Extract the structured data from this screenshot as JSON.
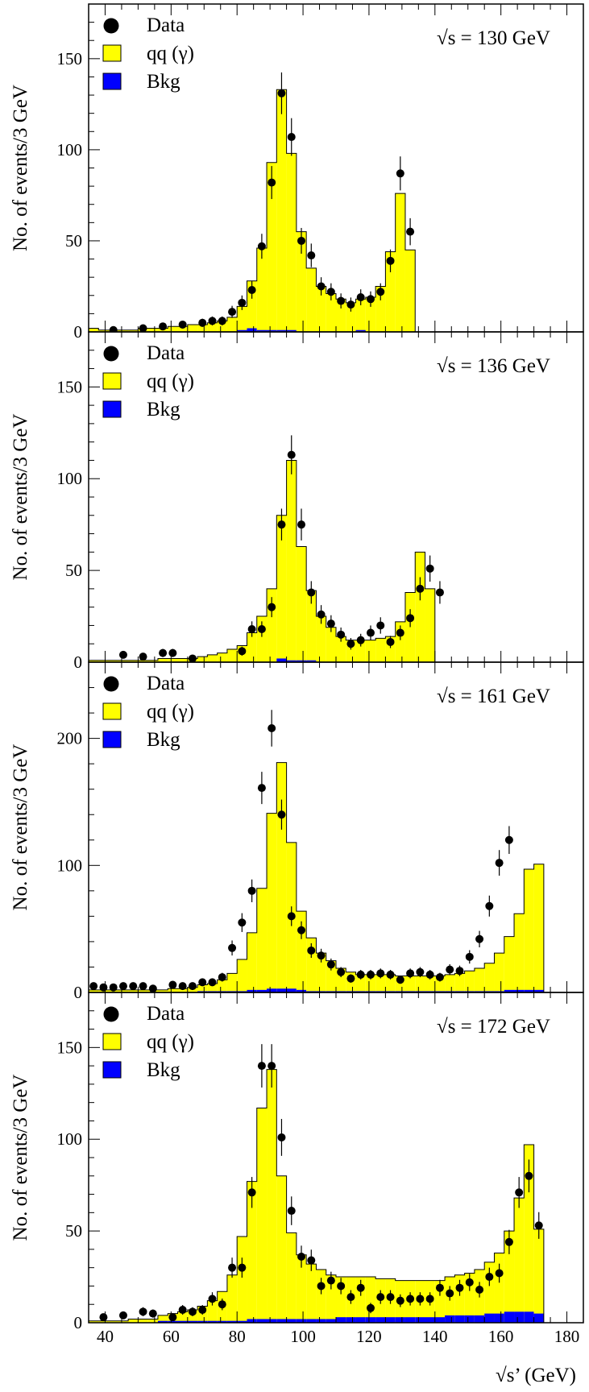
{
  "figure": {
    "ylabel": "No. of events/3 GeV",
    "xlabel": "√s’ (GeV)",
    "legend": {
      "data": "Data",
      "signal": "qq (γ)",
      "bkg": "Bkg"
    },
    "colors": {
      "signal_fill": "#ffff00",
      "bkg_fill": "#0000ff",
      "frame": "#000000",
      "points": "#000000"
    }
  },
  "chart_data": [
    {
      "type": "bar",
      "panel": 1,
      "label": "√s = 130 GeV",
      "xlim": [
        35,
        185
      ],
      "ylim": [
        0,
        180
      ],
      "xticks": [
        40,
        60,
        80,
        100,
        120,
        140,
        160,
        180
      ],
      "yticks": [
        0,
        50,
        100,
        150
      ],
      "bin_width": 3,
      "bin_start": 35,
      "signal": [
        2,
        1,
        1,
        1,
        1,
        2,
        2,
        2,
        3,
        3,
        4,
        4,
        5,
        6,
        8,
        13,
        26,
        45,
        92,
        132,
        97,
        55,
        35,
        25,
        21,
        18,
        16,
        17,
        19,
        25,
        44,
        76,
        45
      ],
      "bkg": [
        0,
        0,
        0,
        0,
        0,
        0,
        0,
        0,
        0,
        0,
        0,
        0,
        0,
        0,
        0,
        1,
        2,
        1,
        1,
        1,
        1,
        0,
        0,
        0,
        0,
        0,
        0,
        1,
        0,
        0,
        0,
        0,
        0
      ],
      "data": [
        [
          42.5,
          1
        ],
        [
          51.5,
          2
        ],
        [
          57.5,
          3
        ],
        [
          63.5,
          4
        ],
        [
          69.5,
          5
        ],
        [
          72.5,
          6
        ],
        [
          75.5,
          6
        ],
        [
          78.5,
          11
        ],
        [
          81.5,
          16
        ],
        [
          84.5,
          23
        ],
        [
          87.5,
          47
        ],
        [
          90.5,
          82
        ],
        [
          93.5,
          131
        ],
        [
          96.5,
          107
        ],
        [
          99.5,
          50
        ],
        [
          102.5,
          42
        ],
        [
          105.5,
          25
        ],
        [
          108.5,
          22
        ],
        [
          111.5,
          17
        ],
        [
          114.5,
          15
        ],
        [
          117.5,
          19
        ],
        [
          120.5,
          18
        ],
        [
          123.5,
          22
        ],
        [
          126.5,
          39
        ],
        [
          129.5,
          87
        ],
        [
          132.5,
          55
        ]
      ]
    },
    {
      "type": "bar",
      "panel": 2,
      "label": "√s = 136 GeV",
      "xlim": [
        35,
        185
      ],
      "ylim": [
        0,
        180
      ],
      "xticks": [
        40,
        60,
        80,
        100,
        120,
        140,
        160,
        180
      ],
      "yticks": [
        0,
        50,
        100,
        150
      ],
      "bin_width": 3,
      "bin_start": 35,
      "signal": [
        1,
        1,
        1,
        1,
        1,
        1,
        1,
        2,
        2,
        2,
        2,
        3,
        4,
        5,
        7,
        9,
        16,
        25,
        40,
        78,
        109,
        62,
        38,
        25,
        19,
        14,
        12,
        12,
        12,
        13,
        14,
        22,
        38,
        60,
        40,
        0
      ],
      "bkg": [
        0,
        0,
        0,
        0,
        0,
        0,
        0,
        0,
        0,
        0,
        0,
        0,
        0,
        0,
        0,
        0,
        0,
        0,
        0,
        2,
        1,
        1,
        1,
        0,
        0,
        0,
        0,
        0,
        0,
        0,
        0,
        0,
        0,
        0,
        0,
        0
      ],
      "data": [
        [
          45.5,
          4
        ],
        [
          51.5,
          3
        ],
        [
          57.5,
          5
        ],
        [
          60.5,
          5
        ],
        [
          66.5,
          2
        ],
        [
          81.5,
          6
        ],
        [
          84.5,
          18
        ],
        [
          87.5,
          18
        ],
        [
          90.5,
          30
        ],
        [
          93.5,
          75
        ],
        [
          96.5,
          113
        ],
        [
          99.5,
          75
        ],
        [
          102.5,
          38
        ],
        [
          105.5,
          26
        ],
        [
          108.5,
          21
        ],
        [
          111.5,
          15
        ],
        [
          114.5,
          10
        ],
        [
          117.5,
          12
        ],
        [
          120.5,
          16
        ],
        [
          123.5,
          20
        ],
        [
          126.5,
          11
        ],
        [
          129.5,
          16
        ],
        [
          132.5,
          24
        ],
        [
          135.5,
          40
        ],
        [
          138.5,
          51
        ],
        [
          141.5,
          38
        ]
      ]
    },
    {
      "type": "bar",
      "panel": 3,
      "label": "√s = 161 GeV",
      "xlim": [
        35,
        185
      ],
      "ylim": [
        0,
        260
      ],
      "xticks": [
        40,
        60,
        80,
        100,
        120,
        140,
        160,
        180
      ],
      "yticks": [
        0,
        100,
        200
      ],
      "bin_width": 3,
      "bin_start": 35,
      "signal": [
        2,
        2,
        2,
        2,
        2,
        2,
        2,
        2,
        3,
        3,
        4,
        5,
        6,
        9,
        14,
        25,
        45,
        80,
        138,
        178,
        115,
        62,
        42,
        30,
        24,
        18,
        15,
        13,
        13,
        13,
        13,
        12,
        12,
        12,
        12,
        12,
        13,
        14,
        16,
        18,
        22,
        30,
        42,
        60,
        95,
        99,
        0
      ],
      "bkg": [
        0,
        0,
        0,
        0,
        0,
        0,
        0,
        0,
        0,
        0,
        0,
        1,
        1,
        1,
        1,
        1,
        2,
        2,
        3,
        3,
        3,
        2,
        1,
        1,
        1,
        1,
        1,
        1,
        1,
        1,
        1,
        1,
        1,
        1,
        1,
        1,
        1,
        1,
        1,
        1,
        1,
        1,
        2,
        2,
        2,
        2,
        0
      ],
      "data": [
        [
          36.5,
          5
        ],
        [
          39.5,
          4
        ],
        [
          42.5,
          4
        ],
        [
          45.5,
          5
        ],
        [
          48.5,
          5
        ],
        [
          51.5,
          5
        ],
        [
          54.5,
          3
        ],
        [
          60.5,
          6
        ],
        [
          63.5,
          5
        ],
        [
          66.5,
          5
        ],
        [
          69.5,
          8
        ],
        [
          72.5,
          8
        ],
        [
          75.5,
          12
        ],
        [
          78.5,
          35
        ],
        [
          81.5,
          55
        ],
        [
          84.5,
          80
        ],
        [
          87.5,
          161
        ],
        [
          90.5,
          208
        ],
        [
          93.5,
          140
        ],
        [
          96.5,
          60
        ],
        [
          99.5,
          49
        ],
        [
          102.5,
          33
        ],
        [
          105.5,
          29
        ],
        [
          108.5,
          22
        ],
        [
          111.5,
          16
        ],
        [
          114.5,
          11
        ],
        [
          117.5,
          14
        ],
        [
          120.5,
          14
        ],
        [
          123.5,
          15
        ],
        [
          126.5,
          14
        ],
        [
          129.5,
          10
        ],
        [
          132.5,
          15
        ],
        [
          135.5,
          16
        ],
        [
          138.5,
          14
        ],
        [
          141.5,
          12
        ],
        [
          144.5,
          18
        ],
        [
          147.5,
          17
        ],
        [
          150.5,
          28
        ],
        [
          153.5,
          42
        ],
        [
          156.5,
          68
        ],
        [
          159.5,
          102
        ],
        [
          162.5,
          120
        ]
      ]
    },
    {
      "type": "bar",
      "panel": 4,
      "label": "√s = 172 GeV",
      "xlim": [
        35,
        185
      ],
      "ylim": [
        0,
        180
      ],
      "xticks": [
        40,
        60,
        80,
        100,
        120,
        140,
        160,
        180
      ],
      "yticks": [
        0,
        50,
        100,
        150
      ],
      "bin_width": 3,
      "bin_start": 35,
      "signal": [
        1,
        1,
        1,
        1,
        2,
        2,
        2,
        3,
        4,
        5,
        6,
        8,
        11,
        16,
        25,
        46,
        75,
        115,
        136,
        78,
        47,
        35,
        30,
        27,
        24,
        22,
        22,
        22,
        22,
        21,
        21,
        20,
        20,
        20,
        20,
        20,
        21,
        22,
        23,
        25,
        28,
        33,
        44,
        62,
        91,
        46
      ],
      "bkg": [
        0,
        0,
        0,
        0,
        0,
        0,
        0,
        1,
        1,
        1,
        1,
        1,
        1,
        1,
        1,
        1,
        2,
        2,
        2,
        2,
        2,
        2,
        2,
        2,
        2,
        3,
        3,
        3,
        3,
        3,
        3,
        3,
        3,
        3,
        3,
        3,
        4,
        4,
        4,
        4,
        5,
        5,
        6,
        6,
        6,
        5
      ],
      "data": [
        [
          39.5,
          3
        ],
        [
          45.5,
          4
        ],
        [
          51.5,
          6
        ],
        [
          54.5,
          5
        ],
        [
          60.5,
          3
        ],
        [
          63.5,
          7
        ],
        [
          66.5,
          6
        ],
        [
          69.5,
          7
        ],
        [
          72.5,
          13
        ],
        [
          75.5,
          10
        ],
        [
          78.5,
          30
        ],
        [
          81.5,
          30
        ],
        [
          84.5,
          71
        ],
        [
          87.5,
          140
        ],
        [
          90.5,
          140
        ],
        [
          93.5,
          101
        ],
        [
          96.5,
          61
        ],
        [
          99.5,
          36
        ],
        [
          102.5,
          34
        ],
        [
          105.5,
          20
        ],
        [
          108.5,
          23
        ],
        [
          111.5,
          20
        ],
        [
          114.5,
          14
        ],
        [
          117.5,
          19
        ],
        [
          120.5,
          8
        ],
        [
          123.5,
          14
        ],
        [
          126.5,
          14
        ],
        [
          129.5,
          12
        ],
        [
          132.5,
          13
        ],
        [
          135.5,
          13
        ],
        [
          138.5,
          13
        ],
        [
          141.5,
          19
        ],
        [
          144.5,
          16
        ],
        [
          147.5,
          19
        ],
        [
          150.5,
          22
        ],
        [
          153.5,
          18
        ],
        [
          156.5,
          25
        ],
        [
          159.5,
          27
        ],
        [
          162.5,
          44
        ],
        [
          165.5,
          71
        ],
        [
          168.5,
          80
        ],
        [
          171.5,
          53
        ]
      ]
    }
  ]
}
